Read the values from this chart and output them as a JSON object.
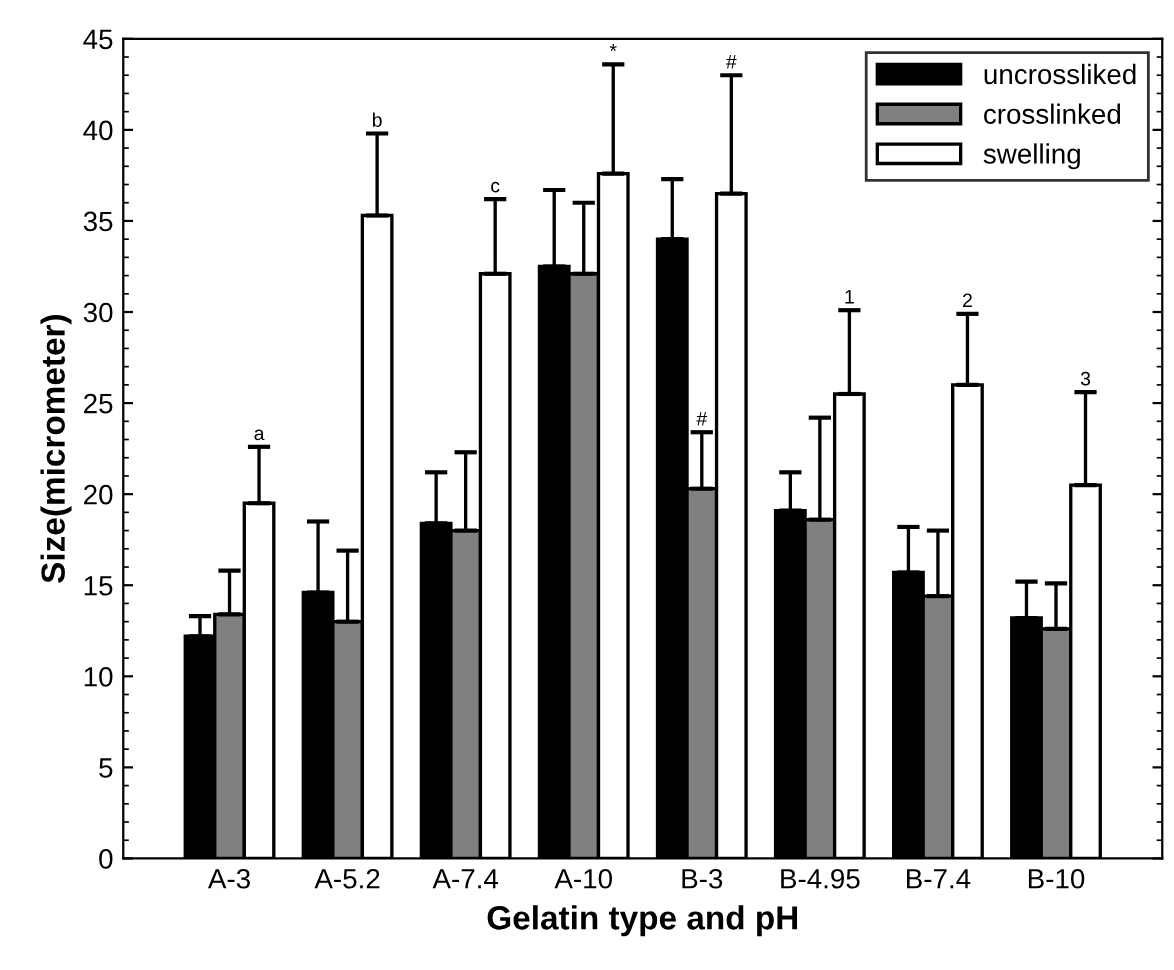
{
  "chart_data": {
    "type": "bar",
    "xlabel": "Gelatin type and pH",
    "ylabel": "Size(micrometer)",
    "categories": [
      "A-3",
      "A-5.2",
      "A-7.4",
      "A-10",
      "B-3",
      "B-4.95",
      "B-7.4",
      "B-10"
    ],
    "series": [
      {
        "name": "uncrossliked",
        "color": "#000000",
        "values": [
          12.2,
          14.6,
          18.4,
          32.5,
          34.0,
          19.1,
          15.7,
          13.2
        ],
        "errors": [
          [
            12.2,
            13.3
          ],
          [
            14.6,
            18.5
          ],
          [
            18.4,
            21.2
          ],
          [
            32.5,
            36.7
          ],
          [
            34.0,
            37.3
          ],
          [
            19.1,
            21.2
          ],
          [
            15.7,
            18.2
          ],
          [
            13.2,
            15.2
          ]
        ]
      },
      {
        "name": "crosslinked",
        "color": "#808080",
        "values": [
          13.4,
          13.0,
          18.0,
          32.1,
          20.3,
          18.6,
          14.4,
          12.6
        ],
        "errors": [
          [
            13.4,
            15.8
          ],
          [
            13.0,
            16.9
          ],
          [
            18.0,
            22.3
          ],
          [
            32.1,
            36.0
          ],
          [
            20.3,
            23.4
          ],
          [
            18.6,
            24.2
          ],
          [
            14.4,
            18.0
          ],
          [
            12.6,
            15.1
          ]
        ]
      },
      {
        "name": "swelling",
        "color": "#ffffff",
        "values": [
          19.5,
          35.3,
          32.1,
          37.6,
          36.5,
          25.5,
          26.0,
          20.5
        ],
        "errors": [
          [
            19.5,
            22.6
          ],
          [
            35.3,
            39.8
          ],
          [
            32.1,
            36.2
          ],
          [
            37.6,
            43.6
          ],
          [
            36.5,
            43.0
          ],
          [
            25.5,
            30.1
          ],
          [
            26.0,
            29.9
          ],
          [
            20.5,
            25.6
          ]
        ]
      }
    ],
    "ylim": [
      0,
      45
    ],
    "yticks": [
      0,
      5,
      10,
      15,
      20,
      25,
      30,
      35,
      40,
      45
    ],
    "grid": false,
    "legend": "top right",
    "annotations": [
      "a",
      "b",
      "c",
      "*",
      "#",
      "#",
      "1",
      "2",
      "3"
    ]
  }
}
